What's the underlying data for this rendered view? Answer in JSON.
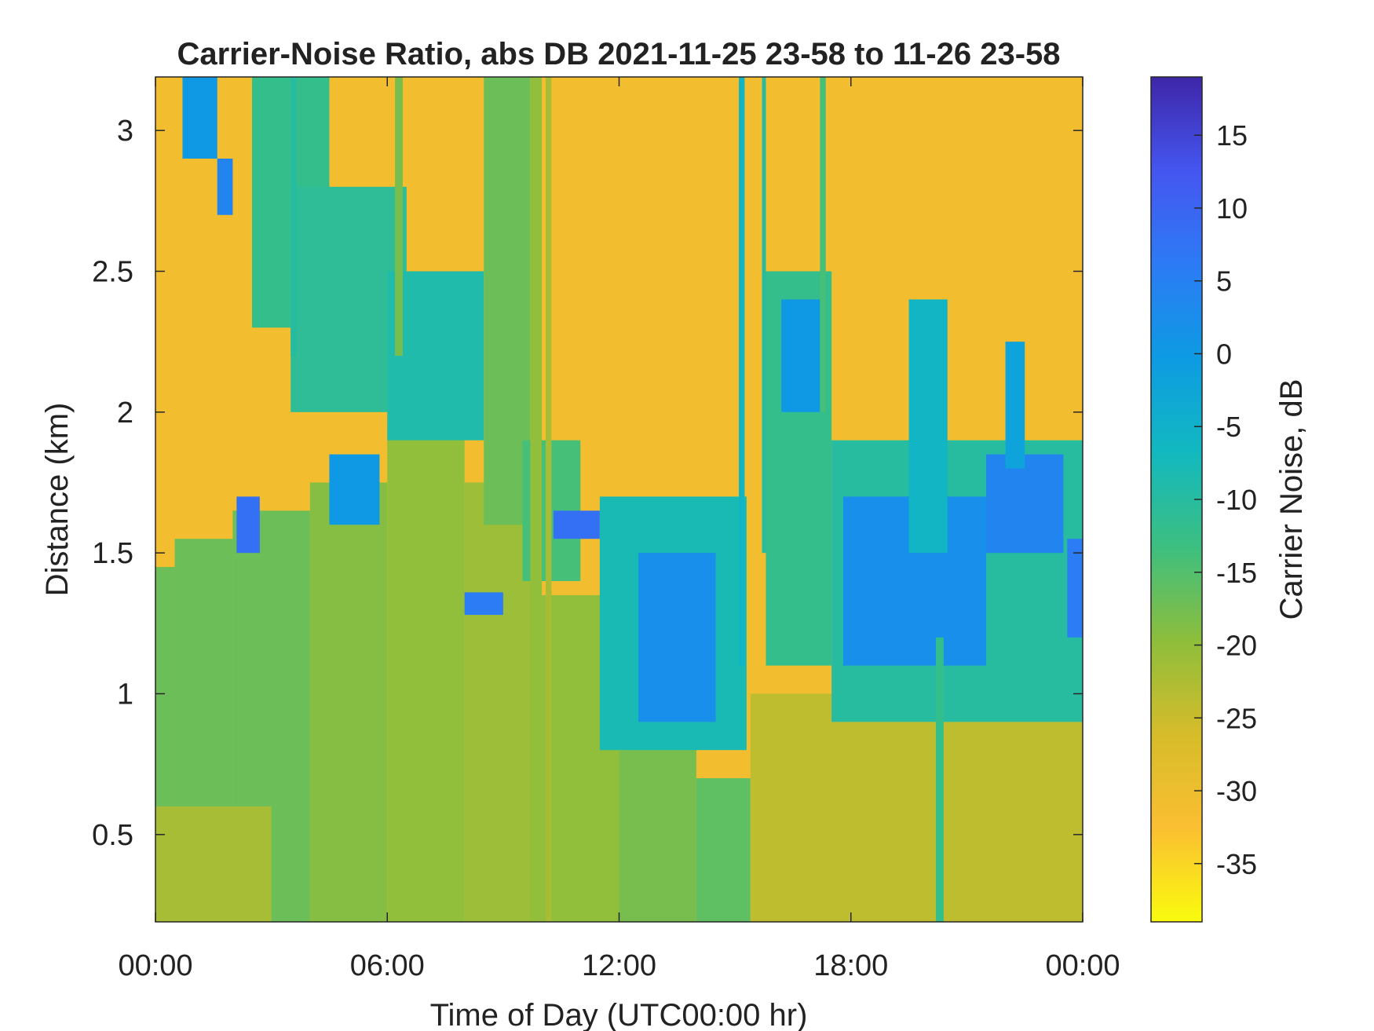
{
  "chart_data": {
    "type": "heatmap",
    "title": "Carrier-Noise Ratio, abs DB 2021-11-25 23-58 to 11-26 23-58",
    "xlabel": "Time of Day (UTC00:00 hr)",
    "ylabel": "Distance (km)",
    "colorbar_label": "Carrier Noise, dB",
    "xlim_hours": [
      0,
      24
    ],
    "ylim_km": [
      0.19,
      3.19
    ],
    "clim_db": [
      -39,
      19
    ],
    "x_ticks": [
      {
        "value": 0,
        "label": "00:00"
      },
      {
        "value": 6,
        "label": "06:00"
      },
      {
        "value": 12,
        "label": "12:00"
      },
      {
        "value": 18,
        "label": "18:00"
      },
      {
        "value": 24,
        "label": "00:00"
      }
    ],
    "y_ticks": [
      {
        "value": 0.5,
        "label": "0.5"
      },
      {
        "value": 1,
        "label": "1"
      },
      {
        "value": 1.5,
        "label": "1.5"
      },
      {
        "value": 2,
        "label": "2"
      },
      {
        "value": 2.5,
        "label": "2.5"
      },
      {
        "value": 3,
        "label": "3"
      }
    ],
    "colorbar_ticks": [
      {
        "value": 15,
        "label": "15"
      },
      {
        "value": 10,
        "label": "10"
      },
      {
        "value": 5,
        "label": "5"
      },
      {
        "value": 0,
        "label": "0"
      },
      {
        "value": -5,
        "label": "-5"
      },
      {
        "value": -10,
        "label": "-10"
      },
      {
        "value": -15,
        "label": "-15"
      },
      {
        "value": -20,
        "label": "-20"
      },
      {
        "value": -25,
        "label": "-25"
      },
      {
        "value": -30,
        "label": "-30"
      },
      {
        "value": -35,
        "label": "-35"
      }
    ],
    "colormap": "parula",
    "colormap_stops": [
      "#f9fb0e",
      "#fbbf32",
      "#d6bc2a",
      "#8dbe3c",
      "#3cbf80",
      "#12b9c0",
      "#0d9be3",
      "#2c7bf5",
      "#4556f0",
      "#3e26a8"
    ],
    "background_level_db": -31,
    "regions": [
      {
        "desc": "boundary layer",
        "x_hours": [
          0.0,
          0.5
        ],
        "y_bottom_km": 0.19,
        "y_top_km": 1.45,
        "db": -17
      },
      {
        "desc": "boundary layer",
        "x_hours": [
          0.5,
          2.0
        ],
        "y_bottom_km": 0.19,
        "y_top_km": 1.55,
        "db": -17
      },
      {
        "desc": "boundary layer",
        "x_hours": [
          2.0,
          4.0
        ],
        "y_bottom_km": 0.19,
        "y_top_km": 1.65,
        "db": -17
      },
      {
        "desc": "boundary layer",
        "x_hours": [
          4.0,
          6.0
        ],
        "y_bottom_km": 0.19,
        "y_top_km": 1.75,
        "db": -19
      },
      {
        "desc": "boundary layer",
        "x_hours": [
          6.0,
          8.0
        ],
        "y_bottom_km": 0.19,
        "y_top_km": 1.95,
        "db": -20
      },
      {
        "desc": "boundary layer",
        "x_hours": [
          8.0,
          10.0
        ],
        "y_bottom_km": 0.19,
        "y_top_km": 1.75,
        "db": -21
      },
      {
        "desc": "boundary layer",
        "x_hours": [
          10.0,
          12.0
        ],
        "y_bottom_km": 0.19,
        "y_top_km": 1.35,
        "db": -20
      },
      {
        "desc": "boundary layer",
        "x_hours": [
          12.0,
          14.0
        ],
        "y_bottom_km": 0.19,
        "y_top_km": 1.0,
        "db": -18
      },
      {
        "desc": "boundary layer",
        "x_hours": [
          14.0,
          15.4
        ],
        "y_bottom_km": 0.19,
        "y_top_km": 0.7,
        "db": -16
      },
      {
        "desc": "low layer",
        "x_hours": [
          0.0,
          3.0
        ],
        "y_bottom_km": 0.19,
        "y_top_km": 0.6,
        "db": -22
      },
      {
        "desc": "aerosol plume",
        "x_hours": [
          2.5,
          4.5
        ],
        "y_bottom_km": 2.3,
        "y_top_km": 3.19,
        "db": -12
      },
      {
        "desc": "aerosol plume",
        "x_hours": [
          3.5,
          6.5
        ],
        "y_bottom_km": 2.0,
        "y_top_km": 2.8,
        "db": -11
      },
      {
        "desc": "aerosol plume",
        "x_hours": [
          6.0,
          8.5
        ],
        "y_bottom_km": 1.9,
        "y_top_km": 2.5,
        "db": -9
      },
      {
        "desc": "aerosol plume",
        "x_hours": [
          8.5,
          9.7
        ],
        "y_bottom_km": 1.6,
        "y_top_km": 3.19,
        "db": -17
      },
      {
        "desc": "aerosol plume",
        "x_hours": [
          9.5,
          11.0
        ],
        "y_bottom_km": 1.4,
        "y_top_km": 1.9,
        "db": -14
      },
      {
        "desc": "cloud",
        "x_hours": [
          10.3,
          11.5
        ],
        "y_bottom_km": 1.55,
        "y_top_km": 1.65,
        "db": 8
      },
      {
        "desc": "cloud",
        "x_hours": [
          8.0,
          9.0
        ],
        "y_bottom_km": 1.28,
        "y_top_km": 1.36,
        "db": 6
      },
      {
        "desc": "cloud",
        "x_hours": [
          4.5,
          5.8
        ],
        "y_bottom_km": 1.6,
        "y_top_km": 1.85,
        "db": 0
      },
      {
        "desc": "cloud",
        "x_hours": [
          11.5,
          15.3
        ],
        "y_bottom_km": 0.8,
        "y_top_km": 1.7,
        "db": -8
      },
      {
        "desc": "cloud",
        "x_hours": [
          12.5,
          14.5
        ],
        "y_bottom_km": 0.9,
        "y_top_km": 1.5,
        "db": 2
      },
      {
        "desc": "mixed layer",
        "x_hours": [
          15.4,
          24.0
        ],
        "y_bottom_km": 0.19,
        "y_top_km": 1.0,
        "db": -24
      },
      {
        "desc": "cloud",
        "x_hours": [
          15.8,
          17.5
        ],
        "y_bottom_km": 1.1,
        "y_top_km": 2.5,
        "db": -12
      },
      {
        "desc": "cloud",
        "x_hours": [
          16.2,
          17.2
        ],
        "y_bottom_km": 2.0,
        "y_top_km": 2.4,
        "db": 0
      },
      {
        "desc": "cloud",
        "x_hours": [
          17.5,
          24.0
        ],
        "y_bottom_km": 0.9,
        "y_top_km": 1.9,
        "db": -10
      },
      {
        "desc": "cloud",
        "x_hours": [
          17.8,
          21.5
        ],
        "y_bottom_km": 1.1,
        "y_top_km": 1.7,
        "db": 2
      },
      {
        "desc": "cloud",
        "x_hours": [
          19.5,
          20.5
        ],
        "y_bottom_km": 1.5,
        "y_top_km": 2.4,
        "db": -6
      },
      {
        "desc": "cloud",
        "x_hours": [
          21.5,
          23.5
        ],
        "y_bottom_km": 1.5,
        "y_top_km": 1.85,
        "db": 4
      },
      {
        "desc": "cloud",
        "x_hours": [
          22.0,
          22.5
        ],
        "y_bottom_km": 1.8,
        "y_top_km": 2.25,
        "db": -2
      },
      {
        "desc": "cloud",
        "x_hours": [
          23.6,
          24.0
        ],
        "y_bottom_km": 1.2,
        "y_top_km": 1.55,
        "db": 6
      },
      {
        "desc": "cloud",
        "x_hours": [
          2.1,
          2.7
        ],
        "y_bottom_km": 1.5,
        "y_top_km": 1.7,
        "db": 8
      },
      {
        "desc": "cloud",
        "x_hours": [
          1.6,
          2.0
        ],
        "y_bottom_km": 2.7,
        "y_top_km": 2.9,
        "db": 4
      },
      {
        "desc": "cloud",
        "x_hours": [
          0.7,
          1.6
        ],
        "y_bottom_km": 2.9,
        "y_top_km": 3.19,
        "db": 0
      }
    ],
    "streaks": [
      {
        "x_hour": 9.7,
        "width_hours": 0.3,
        "y_bottom_km": 0.19,
        "y_top_km": 3.19,
        "db": -20
      },
      {
        "x_hour": 10.1,
        "width_hours": 0.15,
        "y_bottom_km": 0.19,
        "y_top_km": 3.19,
        "db": -22
      },
      {
        "x_hour": 15.1,
        "width_hours": 0.15,
        "y_bottom_km": 1.1,
        "y_top_km": 3.19,
        "db": -6
      },
      {
        "x_hour": 15.7,
        "width_hours": 0.1,
        "y_bottom_km": 1.5,
        "y_top_km": 3.19,
        "db": -10
      },
      {
        "x_hour": 17.2,
        "width_hours": 0.15,
        "y_bottom_km": 2.0,
        "y_top_km": 3.19,
        "db": -14
      },
      {
        "x_hour": 3.5,
        "width_hours": 0.15,
        "y_bottom_km": 2.2,
        "y_top_km": 3.19,
        "db": -10
      },
      {
        "x_hour": 6.2,
        "width_hours": 0.2,
        "y_bottom_km": 2.2,
        "y_top_km": 3.19,
        "db": -18
      },
      {
        "x_hour": 20.2,
        "width_hours": 0.2,
        "y_bottom_km": 0.19,
        "y_top_km": 1.2,
        "db": -12
      }
    ]
  }
}
